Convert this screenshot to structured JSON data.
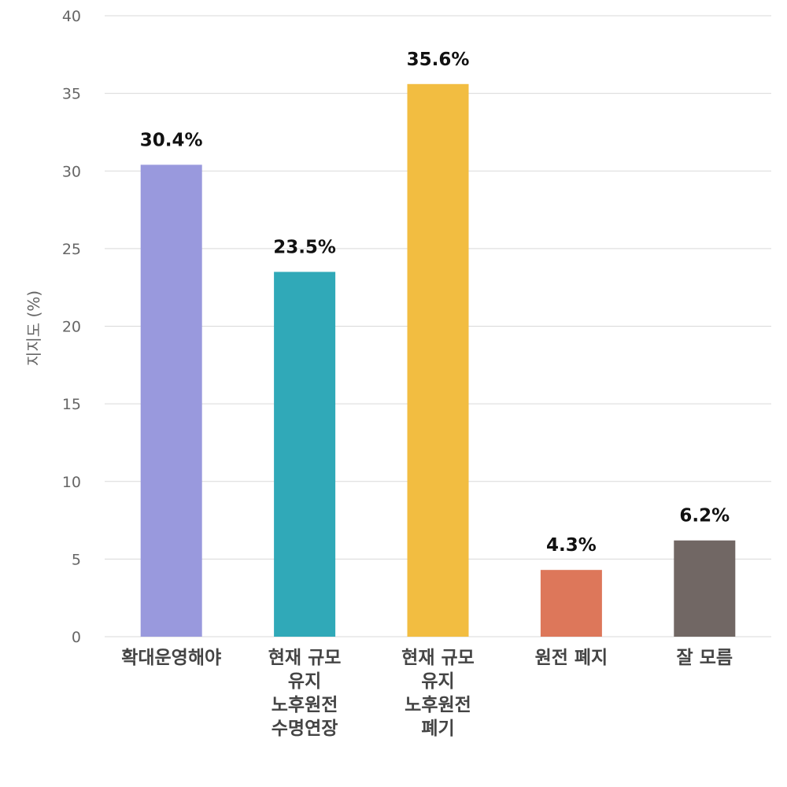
{
  "chart_data": {
    "type": "bar",
    "categories": [
      [
        "확대운영해야"
      ],
      [
        "현재 규모",
        "유지",
        "노후원전",
        "수명연장"
      ],
      [
        "현재 규모",
        "유지",
        "노후원전",
        "폐기"
      ],
      [
        "원전 폐지"
      ],
      [
        "잘 모름"
      ]
    ],
    "values": [
      30.4,
      23.5,
      35.6,
      4.3,
      6.2
    ],
    "value_labels": [
      "30.4%",
      "23.5%",
      "35.6%",
      "4.3%",
      "6.2%"
    ],
    "colors": [
      "#9999dd",
      "#30a9b8",
      "#f2bd41",
      "#dd775a",
      "#716764"
    ],
    "ylabel": "지지도 (%)",
    "ylim": [
      0,
      40
    ],
    "yticks": [
      0,
      5,
      10,
      15,
      20,
      25,
      30,
      35,
      40
    ],
    "grid": true,
    "legend": "none"
  }
}
